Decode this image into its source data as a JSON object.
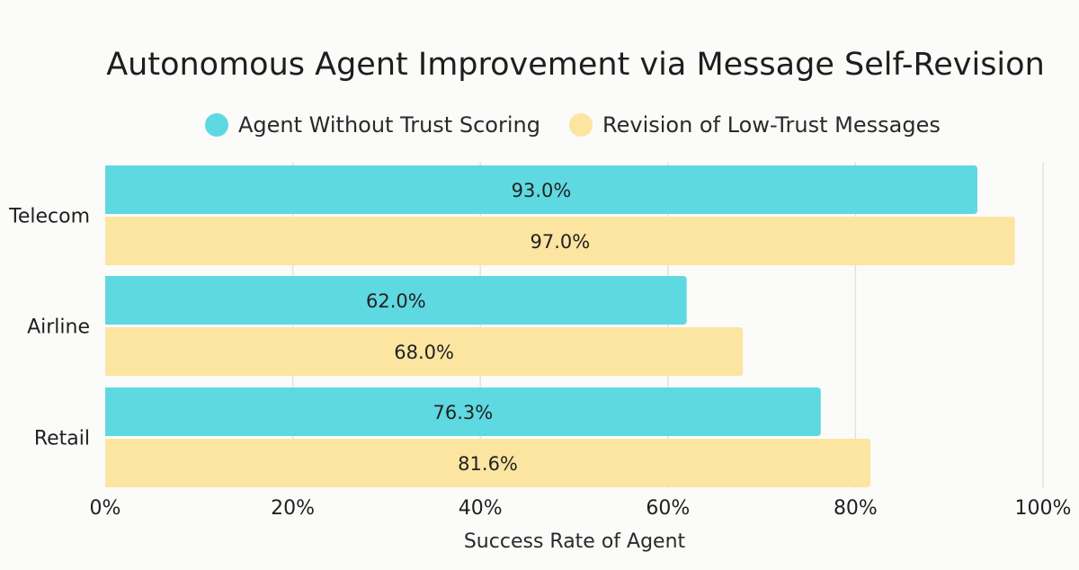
{
  "chart_data": {
    "type": "bar",
    "orientation": "horizontal",
    "title": "Autonomous Agent Improvement via Message Self-Revision",
    "xlabel": "Success Rate of Agent",
    "ylabel": "",
    "categories": [
      "Telecom",
      "Airline",
      "Retail"
    ],
    "series": [
      {
        "name": "Agent Without Trust Scoring",
        "color": "#5fd9e1",
        "values": [
          93.0,
          62.0,
          76.3
        ],
        "labels": [
          "93.0%",
          "62.0%",
          "76.3%"
        ]
      },
      {
        "name": "Revision of Low-Trust Messages",
        "color": "#fbe5a1",
        "values": [
          97.0,
          68.0,
          81.6
        ],
        "labels": [
          "97.0%",
          "68.0%",
          "81.6%"
        ]
      }
    ],
    "xlim": [
      0,
      100
    ],
    "xticks": [
      0,
      20,
      40,
      60,
      80,
      100
    ],
    "xtick_labels": [
      "0%",
      "20%",
      "40%",
      "60%",
      "80%",
      "100%"
    ],
    "grid": "vertical",
    "legend_position": "top-center"
  }
}
